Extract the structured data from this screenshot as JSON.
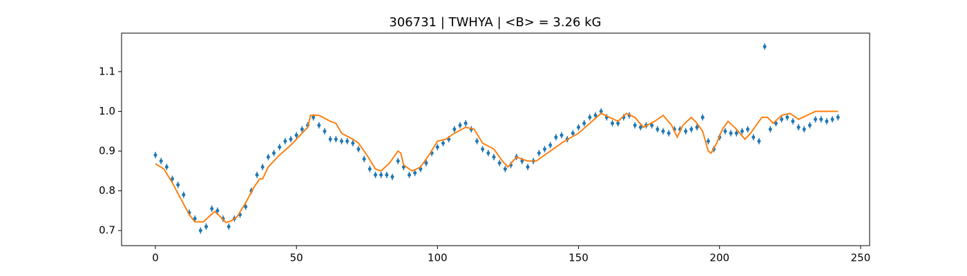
{
  "chart_data": {
    "type": "errorbar",
    "title": "306731 | TWHYA | <B> = 3.26 kG",
    "xlim": [
      -12,
      253.2
    ],
    "ylim": [
      0.662,
      1.197
    ],
    "xticks": [
      0,
      50,
      100,
      150,
      200,
      250
    ],
    "yticks": [
      0.7,
      0.8,
      0.9,
      {
        "value": 1,
        "label": "1.0"
      },
      1.1
    ],
    "grid": false,
    "series": [
      {
        "type": "errorbar",
        "color": "#1f77b4",
        "yerr": 0.008,
        "x": [
          0,
          2,
          4,
          6,
          8,
          10,
          12,
          14,
          16,
          18,
          20,
          22,
          24,
          26,
          28,
          30,
          32,
          34,
          36,
          38,
          40,
          42,
          44,
          46,
          48,
          50,
          52,
          54,
          56,
          58,
          60,
          62,
          64,
          66,
          68,
          70,
          72,
          74,
          76,
          78,
          80,
          82,
          84,
          86,
          88,
          90,
          92,
          94,
          96,
          98,
          100,
          102,
          104,
          106,
          108,
          110,
          112,
          114,
          116,
          118,
          120,
          122,
          124,
          126,
          128,
          130,
          132,
          134,
          136,
          138,
          140,
          142,
          144,
          146,
          148,
          150,
          152,
          154,
          156,
          158,
          160,
          162,
          164,
          166,
          168,
          170,
          172,
          174,
          176,
          178,
          180,
          182,
          184,
          186,
          188,
          190,
          192,
          194,
          196,
          198,
          200,
          202,
          204,
          206,
          208,
          210,
          212,
          214,
          216,
          218,
          220,
          222,
          224,
          226,
          228,
          230,
          232,
          234,
          236,
          238,
          240,
          242
        ],
        "y": [
          0.89,
          0.875,
          0.86,
          0.83,
          0.815,
          0.79,
          0.745,
          0.73,
          0.7,
          0.71,
          0.755,
          0.75,
          0.73,
          0.71,
          0.73,
          0.74,
          0.76,
          0.8,
          0.84,
          0.86,
          0.885,
          0.895,
          0.91,
          0.925,
          0.93,
          0.94,
          0.955,
          0.965,
          0.985,
          0.965,
          0.95,
          0.93,
          0.93,
          0.925,
          0.925,
          0.92,
          0.905,
          0.88,
          0.855,
          0.84,
          0.84,
          0.84,
          0.835,
          0.875,
          0.86,
          0.84,
          0.845,
          0.855,
          0.87,
          0.895,
          0.91,
          0.92,
          0.93,
          0.955,
          0.965,
          0.97,
          0.955,
          0.925,
          0.905,
          0.895,
          0.885,
          0.87,
          0.855,
          0.865,
          0.885,
          0.875,
          0.86,
          0.875,
          0.895,
          0.905,
          0.915,
          0.935,
          0.94,
          0.93,
          0.945,
          0.96,
          0.97,
          0.985,
          0.99,
          1.0,
          0.985,
          0.97,
          0.97,
          0.985,
          0.99,
          0.965,
          0.96,
          0.965,
          0.965,
          0.955,
          0.95,
          0.945,
          0.955,
          0.955,
          0.95,
          0.955,
          0.96,
          0.985,
          0.925,
          0.905,
          0.935,
          0.95,
          0.945,
          0.945,
          0.95,
          0.955,
          0.935,
          0.925,
          1.163,
          0.955,
          0.97,
          0.98,
          0.985,
          0.975,
          0.96,
          0.955,
          0.965,
          0.98,
          0.98,
          0.975,
          0.98,
          0.985
        ]
      },
      {
        "type": "line",
        "color": "#ff7f0e",
        "x": [
          0,
          3,
          6,
          9,
          12,
          14,
          17,
          19,
          21,
          23,
          25,
          27,
          29,
          32,
          35,
          37,
          38,
          40,
          44,
          48,
          52,
          54,
          55,
          58,
          62,
          64,
          66,
          70,
          72,
          75,
          78,
          80,
          83,
          86,
          87,
          88,
          91,
          94,
          97,
          100,
          103,
          106,
          110,
          113,
          116,
          120,
          123,
          125,
          128,
          132,
          135,
          138,
          142,
          145,
          150,
          154,
          158,
          161,
          164,
          167,
          170,
          173,
          177,
          180,
          183,
          185,
          187,
          190,
          192,
          194,
          196,
          197,
          199,
          201,
          203,
          206,
          209,
          211,
          213,
          215,
          217,
          219,
          222,
          225,
          228,
          231,
          234,
          242
        ],
        "y": [
          0.868,
          0.855,
          0.82,
          0.78,
          0.74,
          0.722,
          0.722,
          0.735,
          0.748,
          0.735,
          0.72,
          0.725,
          0.735,
          0.77,
          0.81,
          0.83,
          0.83,
          0.86,
          0.89,
          0.915,
          0.945,
          0.96,
          0.99,
          0.99,
          0.975,
          0.97,
          0.945,
          0.93,
          0.92,
          0.89,
          0.855,
          0.85,
          0.87,
          0.9,
          0.895,
          0.865,
          0.85,
          0.86,
          0.89,
          0.925,
          0.93,
          0.945,
          0.96,
          0.955,
          0.92,
          0.905,
          0.875,
          0.86,
          0.885,
          0.875,
          0.875,
          0.89,
          0.91,
          0.925,
          0.945,
          0.97,
          0.995,
          0.985,
          0.975,
          0.995,
          0.985,
          0.96,
          0.975,
          0.99,
          0.965,
          0.935,
          0.965,
          0.985,
          0.97,
          0.95,
          0.9,
          0.895,
          0.92,
          0.955,
          0.975,
          0.955,
          0.93,
          0.945,
          0.965,
          0.985,
          0.985,
          0.97,
          0.99,
          0.995,
          0.98,
          0.99,
          1.0,
          1.0
        ]
      }
    ]
  }
}
